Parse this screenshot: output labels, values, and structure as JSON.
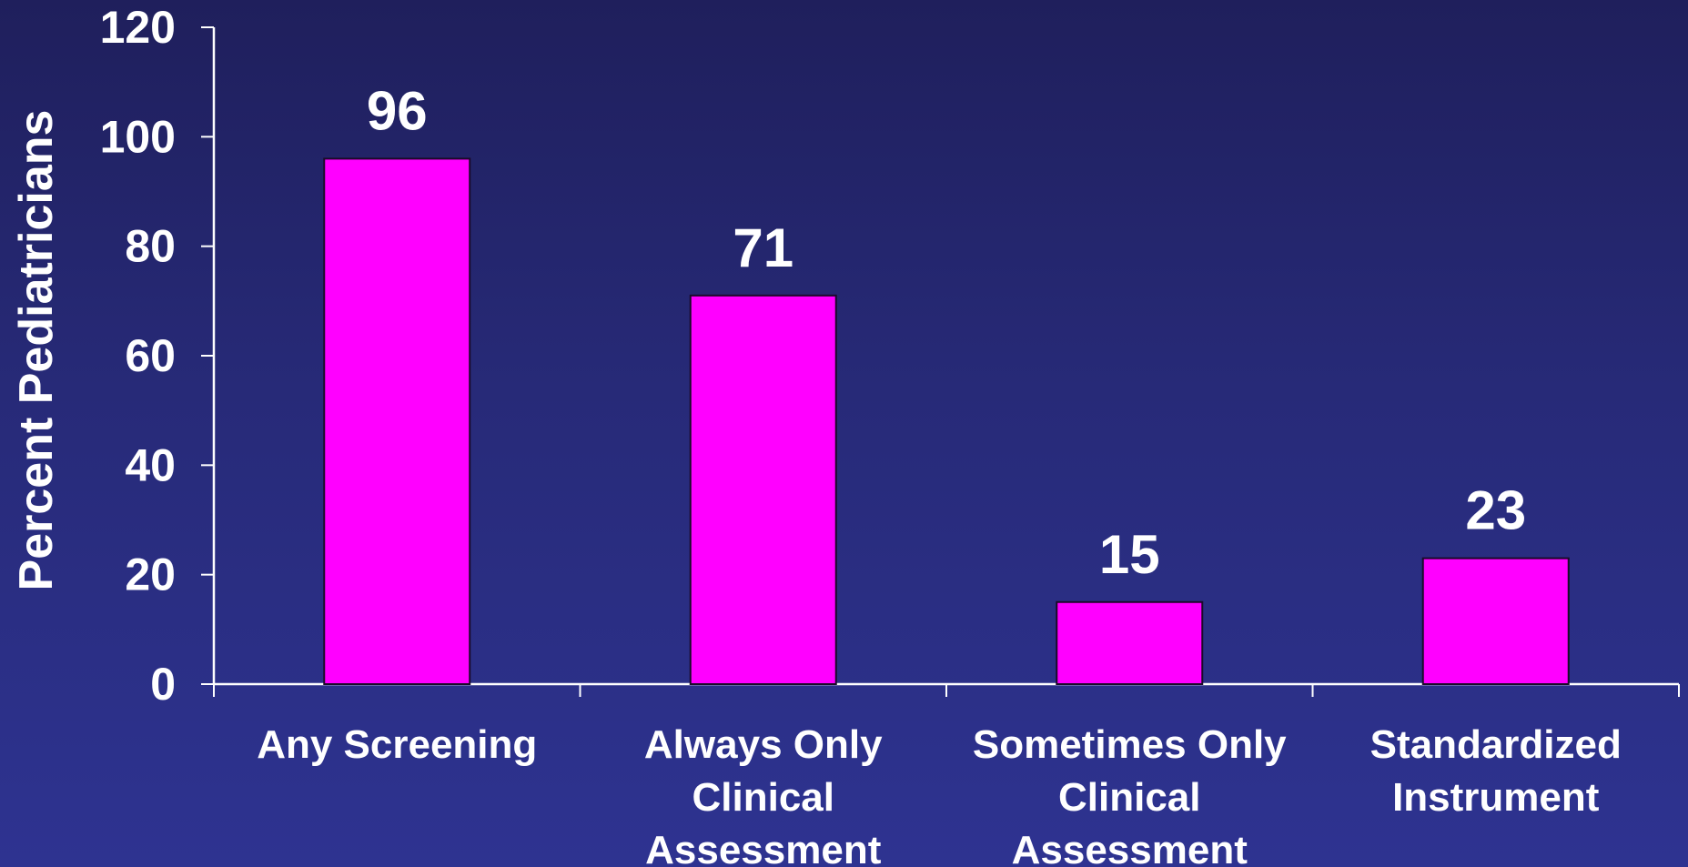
{
  "chart_data": {
    "type": "bar",
    "title": "",
    "xlabel": "",
    "ylabel": "Percent Pediatricians",
    "ylim": [
      0,
      120
    ],
    "yticks": [
      0,
      20,
      40,
      60,
      80,
      100,
      120
    ],
    "categories": [
      [
        "Any Screening"
      ],
      [
        "Always Only",
        "Clinical",
        "Assessment"
      ],
      [
        "Sometimes Only",
        "Clinical",
        "Assessment"
      ],
      [
        "Standardized",
        "Instrument"
      ]
    ],
    "values": [
      96,
      71,
      15,
      23
    ],
    "data_labels": [
      "96",
      "71",
      "15",
      "23"
    ],
    "grid": false,
    "legend": "none",
    "colors": {
      "bar_fill": "#ff00ff",
      "bar_stroke": "#1a0a2a",
      "axis": "#ffffff",
      "text": "#ffffff",
      "background_top": "#1f1f5c",
      "background_bottom": "#2e3391"
    }
  }
}
